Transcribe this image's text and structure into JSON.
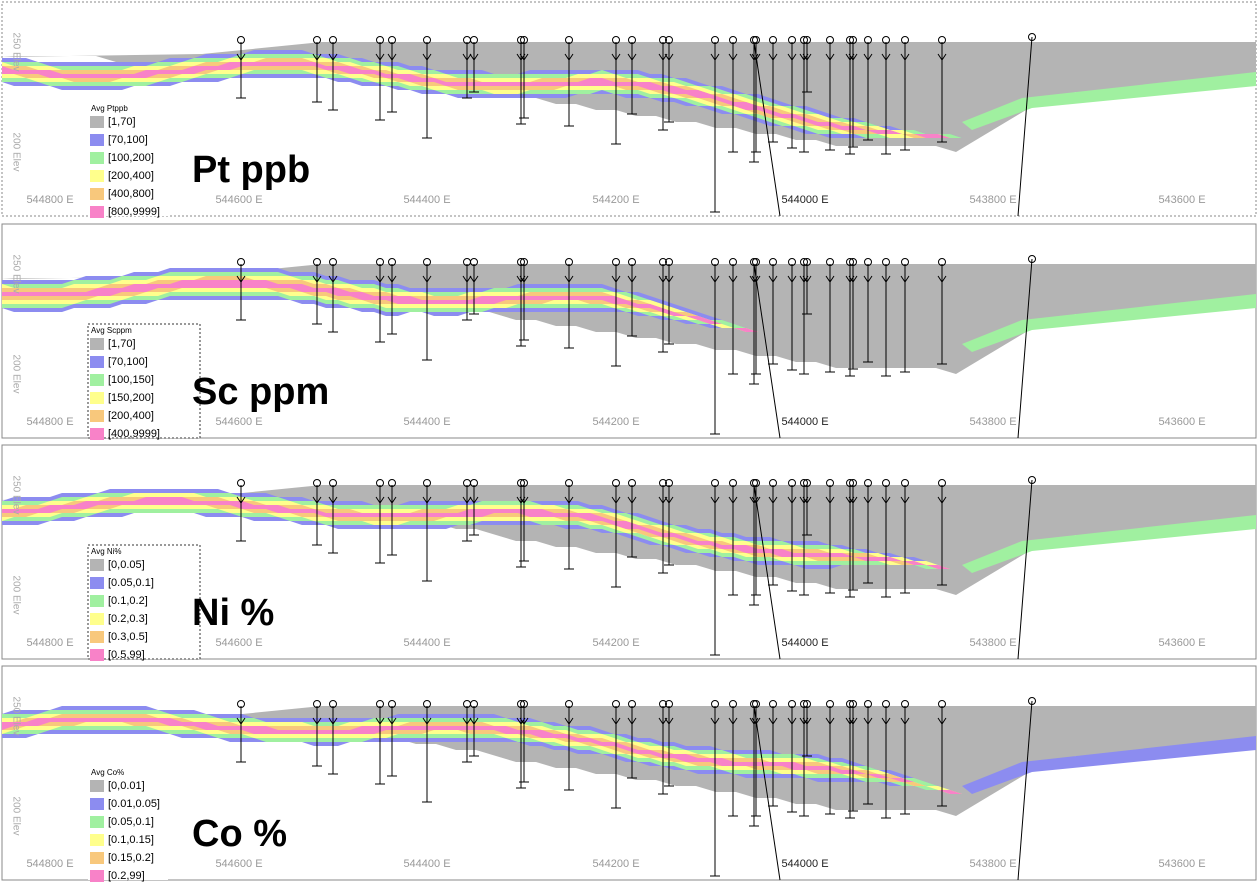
{
  "panels": [
    {
      "label": "Pt ppb",
      "legend_title": "Avg Ptppb",
      "legend": [
        {
          "text": "[1,70]",
          "color": "#b4b4b4"
        },
        {
          "text": "[70,100]",
          "color": "#8c8cf0"
        },
        {
          "text": "[100,200]",
          "color": "#a0f0a0"
        },
        {
          "text": "[200,400]",
          "color": "#ffff8c"
        },
        {
          "text": "[400,800]",
          "color": "#f8c87c"
        },
        {
          "text": "[800,9999]",
          "color": "#f882c8"
        }
      ]
    },
    {
      "label": "Sc ppm",
      "legend_title": "Avg Scppm",
      "legend": [
        {
          "text": "[1,70]",
          "color": "#b4b4b4"
        },
        {
          "text": "[70,100]",
          "color": "#8c8cf0"
        },
        {
          "text": "[100,150]",
          "color": "#a0f0a0"
        },
        {
          "text": "[150,200]",
          "color": "#ffff8c"
        },
        {
          "text": "[200,400]",
          "color": "#f8c87c"
        },
        {
          "text": "[400,9999]",
          "color": "#f882c8"
        }
      ]
    },
    {
      "label": "Ni %",
      "legend_title": "Avg Ni%",
      "legend": [
        {
          "text": "[0,0.05]",
          "color": "#b4b4b4"
        },
        {
          "text": "[0.05,0.1]",
          "color": "#8c8cf0"
        },
        {
          "text": "[0.1,0.2]",
          "color": "#a0f0a0"
        },
        {
          "text": "[0.2,0.3]",
          "color": "#ffff8c"
        },
        {
          "text": "[0.3,0.5]",
          "color": "#f8c87c"
        },
        {
          "text": "[0.5,99]",
          "color": "#f882c8"
        }
      ]
    },
    {
      "label": "Co %",
      "legend_title": "Avg Co%",
      "legend": [
        {
          "text": "[0,0.01]",
          "color": "#b4b4b4"
        },
        {
          "text": "[0.01,0.05]",
          "color": "#8c8cf0"
        },
        {
          "text": "[0.05,0.1]",
          "color": "#a0f0a0"
        },
        {
          "text": "[0.1,0.15]",
          "color": "#ffff8c"
        },
        {
          "text": "[0.15,0.2]",
          "color": "#f8c87c"
        },
        {
          "text": "[0.2,99]",
          "color": "#f882c8"
        }
      ]
    }
  ],
  "x_labels": [
    "544800 E",
    "544600 E",
    "544400 E",
    "544200 E",
    "544000 E",
    "543800 E",
    "543600 E"
  ],
  "elev_labels": [
    "250 Elev",
    "200 Elev"
  ]
}
